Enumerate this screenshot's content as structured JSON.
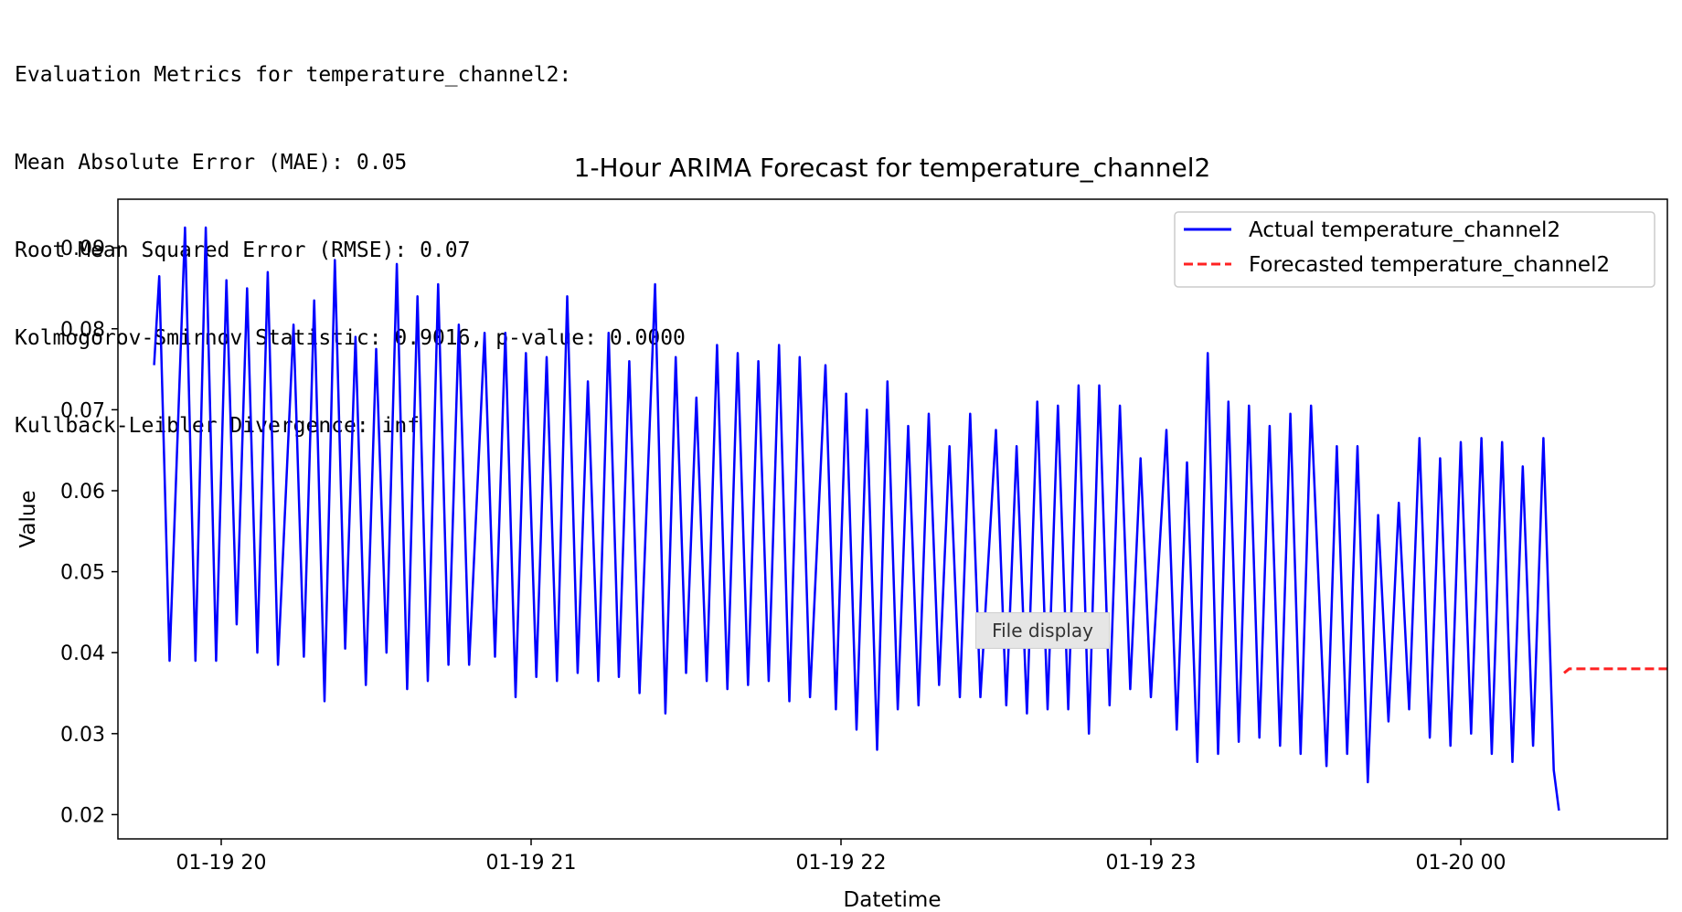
{
  "console": {
    "lines": [
      "Evaluation Metrics for temperature_channel2:",
      "Mean Absolute Error (MAE): 0.05",
      "Root Mean Squared Error (RMSE): 0.07",
      "Kolmogorov-Smirnov Statistic: 0.9016, p-value: 0.0000",
      "Kullback-Leibler Divergence: inf"
    ]
  },
  "tooltip": {
    "text": "File display"
  },
  "colors": {
    "actual": "#0000ff",
    "forecast": "#ff2222",
    "axis": "#000000"
  },
  "chart_data": {
    "type": "line",
    "title": "1-Hour ARIMA Forecast for temperature_channel2",
    "xlabel": "Datetime",
    "ylabel": "Value",
    "ylim": [
      0.017,
      0.096
    ],
    "xlim": [
      "2024-01-19 19:40",
      "2024-01-20 00:40"
    ],
    "xticks": [
      {
        "t": "2024-01-19 20:00",
        "label": "01-19 20"
      },
      {
        "t": "2024-01-19 21:00",
        "label": "01-19 21"
      },
      {
        "t": "2024-01-19 22:00",
        "label": "01-19 22"
      },
      {
        "t": "2024-01-19 23:00",
        "label": "01-19 23"
      },
      {
        "t": "2024-01-20 00:00",
        "label": "01-20 00"
      }
    ],
    "yticks": [
      0.02,
      0.03,
      0.04,
      0.05,
      0.06,
      0.07,
      0.08,
      0.09
    ],
    "legend_position": "upper right",
    "grid": false,
    "series": [
      {
        "name": "Actual temperature_channel2",
        "style": "solid",
        "color": "#0000ff",
        "peaks": [
          [
            "2024-01-19 19:48",
            0.0865
          ],
          [
            "2024-01-19 19:53",
            0.0925
          ],
          [
            "2024-01-19 19:57",
            0.0925
          ],
          [
            "2024-01-19 20:01",
            0.086
          ],
          [
            "2024-01-19 20:05",
            0.085
          ],
          [
            "2024-01-19 20:09",
            0.087
          ],
          [
            "2024-01-19 20:14",
            0.0805
          ],
          [
            "2024-01-19 20:18",
            0.0835
          ],
          [
            "2024-01-19 20:22",
            0.0885
          ],
          [
            "2024-01-19 20:26",
            0.079
          ],
          [
            "2024-01-19 20:30",
            0.0775
          ],
          [
            "2024-01-19 20:34",
            0.088
          ],
          [
            "2024-01-19 20:38",
            0.084
          ],
          [
            "2024-01-19 20:42",
            0.0855
          ],
          [
            "2024-01-19 20:46",
            0.0805
          ],
          [
            "2024-01-19 20:51",
            0.0795
          ],
          [
            "2024-01-19 20:55",
            0.0795
          ],
          [
            "2024-01-19 20:59",
            0.077
          ],
          [
            "2024-01-19 21:03",
            0.0765
          ],
          [
            "2024-01-19 21:07",
            0.084
          ],
          [
            "2024-01-19 21:11",
            0.0735
          ],
          [
            "2024-01-19 21:15",
            0.0795
          ],
          [
            "2024-01-19 21:19",
            0.076
          ],
          [
            "2024-01-19 21:24",
            0.0855
          ],
          [
            "2024-01-19 21:28",
            0.0765
          ],
          [
            "2024-01-19 21:32",
            0.0715
          ],
          [
            "2024-01-19 21:36",
            0.078
          ],
          [
            "2024-01-19 21:40",
            0.077
          ],
          [
            "2024-01-19 21:44",
            0.076
          ],
          [
            "2024-01-19 21:48",
            0.078
          ],
          [
            "2024-01-19 21:52",
            0.0765
          ],
          [
            "2024-01-19 21:57",
            0.0755
          ],
          [
            "2024-01-19 22:01",
            0.072
          ],
          [
            "2024-01-19 22:05",
            0.07
          ],
          [
            "2024-01-19 22:09",
            0.0735
          ],
          [
            "2024-01-19 22:13",
            0.068
          ],
          [
            "2024-01-19 22:17",
            0.0695
          ],
          [
            "2024-01-19 22:21",
            0.0655
          ],
          [
            "2024-01-19 22:25",
            0.0695
          ],
          [
            "2024-01-19 22:30",
            0.0675
          ],
          [
            "2024-01-19 22:34",
            0.0655
          ],
          [
            "2024-01-19 22:38",
            0.071
          ],
          [
            "2024-01-19 22:42",
            0.0705
          ],
          [
            "2024-01-19 22:46",
            0.073
          ],
          [
            "2024-01-19 22:50",
            0.073
          ],
          [
            "2024-01-19 22:54",
            0.0705
          ],
          [
            "2024-01-19 22:58",
            0.064
          ],
          [
            "2024-01-19 23:03",
            0.0675
          ],
          [
            "2024-01-19 23:07",
            0.0635
          ],
          [
            "2024-01-19 23:11",
            0.077
          ],
          [
            "2024-01-19 23:15",
            0.071
          ],
          [
            "2024-01-19 23:19",
            0.0705
          ],
          [
            "2024-01-19 23:23",
            0.068
          ],
          [
            "2024-01-19 23:27",
            0.0695
          ],
          [
            "2024-01-19 23:31",
            0.0705
          ],
          [
            "2024-01-19 23:36",
            0.0655
          ],
          [
            "2024-01-19 23:40",
            0.0655
          ],
          [
            "2024-01-19 23:44",
            0.057
          ],
          [
            "2024-01-19 23:48",
            0.0585
          ],
          [
            "2024-01-19 23:52",
            0.0665
          ],
          [
            "2024-01-19 23:56",
            0.064
          ],
          [
            "2024-01-20 00:00",
            0.066
          ],
          [
            "2024-01-20 00:04",
            0.0665
          ],
          [
            "2024-01-20 00:08",
            0.066
          ],
          [
            "2024-01-20 00:12",
            0.063
          ],
          [
            "2024-01-20 00:16",
            0.0665
          ]
        ],
        "troughs": [
          [
            "2024-01-19 19:50",
            0.039
          ],
          [
            "2024-01-19 19:55",
            0.039
          ],
          [
            "2024-01-19 19:59",
            0.039
          ],
          [
            "2024-01-19 20:03",
            0.0435
          ],
          [
            "2024-01-19 20:07",
            0.04
          ],
          [
            "2024-01-19 20:11",
            0.0385
          ],
          [
            "2024-01-19 20:16",
            0.0395
          ],
          [
            "2024-01-19 20:20",
            0.034
          ],
          [
            "2024-01-19 20:24",
            0.0405
          ],
          [
            "2024-01-19 20:28",
            0.036
          ],
          [
            "2024-01-19 20:32",
            0.04
          ],
          [
            "2024-01-19 20:36",
            0.0355
          ],
          [
            "2024-01-19 20:40",
            0.0365
          ],
          [
            "2024-01-19 20:44",
            0.0385
          ],
          [
            "2024-01-19 20:48",
            0.0385
          ],
          [
            "2024-01-19 20:53",
            0.0395
          ],
          [
            "2024-01-19 20:57",
            0.0345
          ],
          [
            "2024-01-19 21:01",
            0.037
          ],
          [
            "2024-01-19 21:05",
            0.0365
          ],
          [
            "2024-01-19 21:09",
            0.0375
          ],
          [
            "2024-01-19 21:13",
            0.0365
          ],
          [
            "2024-01-19 21:17",
            0.037
          ],
          [
            "2024-01-19 21:21",
            0.035
          ],
          [
            "2024-01-19 21:26",
            0.0325
          ],
          [
            "2024-01-19 21:30",
            0.0375
          ],
          [
            "2024-01-19 21:34",
            0.0365
          ],
          [
            "2024-01-19 21:38",
            0.0355
          ],
          [
            "2024-01-19 21:42",
            0.036
          ],
          [
            "2024-01-19 21:46",
            0.0365
          ],
          [
            "2024-01-19 21:50",
            0.034
          ],
          [
            "2024-01-19 21:54",
            0.0345
          ],
          [
            "2024-01-19 21:59",
            0.033
          ],
          [
            "2024-01-19 22:03",
            0.0305
          ],
          [
            "2024-01-19 22:07",
            0.028
          ],
          [
            "2024-01-19 22:11",
            0.033
          ],
          [
            "2024-01-19 22:15",
            0.0335
          ],
          [
            "2024-01-19 22:19",
            0.036
          ],
          [
            "2024-01-19 22:23",
            0.0345
          ],
          [
            "2024-01-19 22:27",
            0.0345
          ],
          [
            "2024-01-19 22:32",
            0.0335
          ],
          [
            "2024-01-19 22:36",
            0.0325
          ],
          [
            "2024-01-19 22:40",
            0.033
          ],
          [
            "2024-01-19 22:44",
            0.033
          ],
          [
            "2024-01-19 22:48",
            0.03
          ],
          [
            "2024-01-19 22:52",
            0.0335
          ],
          [
            "2024-01-19 22:56",
            0.0355
          ],
          [
            "2024-01-19 23:00",
            0.0345
          ],
          [
            "2024-01-19 23:05",
            0.0305
          ],
          [
            "2024-01-19 23:09",
            0.0265
          ],
          [
            "2024-01-19 23:13",
            0.0275
          ],
          [
            "2024-01-19 23:17",
            0.029
          ],
          [
            "2024-01-19 23:21",
            0.0295
          ],
          [
            "2024-01-19 23:25",
            0.0285
          ],
          [
            "2024-01-19 23:29",
            0.0275
          ],
          [
            "2024-01-19 23:34",
            0.026
          ],
          [
            "2024-01-19 23:38",
            0.0275
          ],
          [
            "2024-01-19 23:42",
            0.024
          ],
          [
            "2024-01-19 23:46",
            0.0315
          ],
          [
            "2024-01-19 23:50",
            0.033
          ],
          [
            "2024-01-19 23:54",
            0.0295
          ],
          [
            "2024-01-19 23:58",
            0.0285
          ],
          [
            "2024-01-20 00:02",
            0.03
          ],
          [
            "2024-01-20 00:06",
            0.0275
          ],
          [
            "2024-01-20 00:10",
            0.0265
          ],
          [
            "2024-01-20 00:14",
            0.0285
          ],
          [
            "2024-01-20 00:18",
            0.0255
          ]
        ],
        "start": [
          "2024-01-19 19:47",
          0.0755
        ],
        "end": [
          "2024-01-20 00:19",
          0.0205
        ]
      },
      {
        "name": "Forecasted temperature_channel2",
        "style": "dashed",
        "color": "#ff2222",
        "x": [
          "2024-01-20 00:20",
          "2024-01-20 00:21",
          "2024-01-20 00:40"
        ],
        "y": [
          0.0375,
          0.038,
          0.038
        ]
      }
    ]
  }
}
